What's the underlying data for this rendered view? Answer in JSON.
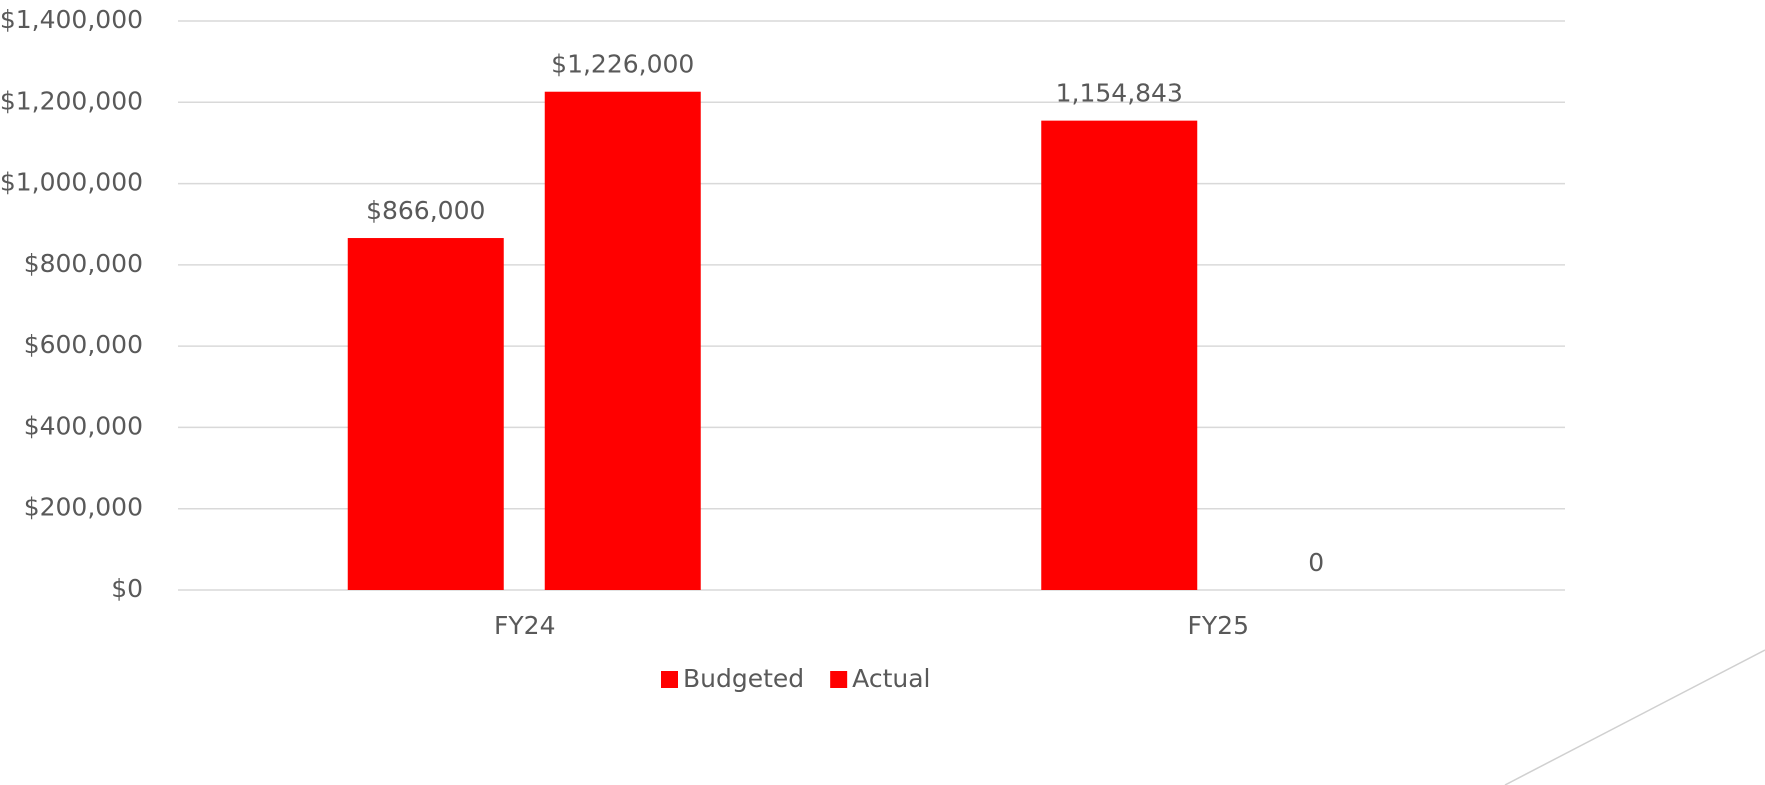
{
  "chart_data": {
    "type": "bar",
    "categories": [
      "FY24",
      "FY25"
    ],
    "series": [
      {
        "name": "Budgeted",
        "color": "#ff0000",
        "values": [
          866000,
          1154843
        ],
        "value_labels": [
          "$866,000",
          "1,154,843"
        ]
      },
      {
        "name": "Actual",
        "color": "#ff0000",
        "values": [
          1226000,
          0
        ],
        "value_labels": [
          "$1,226,000",
          "0"
        ]
      }
    ],
    "ylim": [
      0,
      1400000
    ],
    "yticks": [
      {
        "value": 0,
        "label": "$0"
      },
      {
        "value": 200000,
        "label": "$200,000"
      },
      {
        "value": 400000,
        "label": "$400,000"
      },
      {
        "value": 600000,
        "label": "$600,000"
      },
      {
        "value": 800000,
        "label": "$800,000"
      },
      {
        "value": 1000000,
        "label": "$1,000,000"
      },
      {
        "value": 1200000,
        "label": "$1,200,000"
      },
      {
        "value": 1400000,
        "label": "$1,400,000"
      }
    ],
    "grid": true,
    "legend": "bottom"
  }
}
